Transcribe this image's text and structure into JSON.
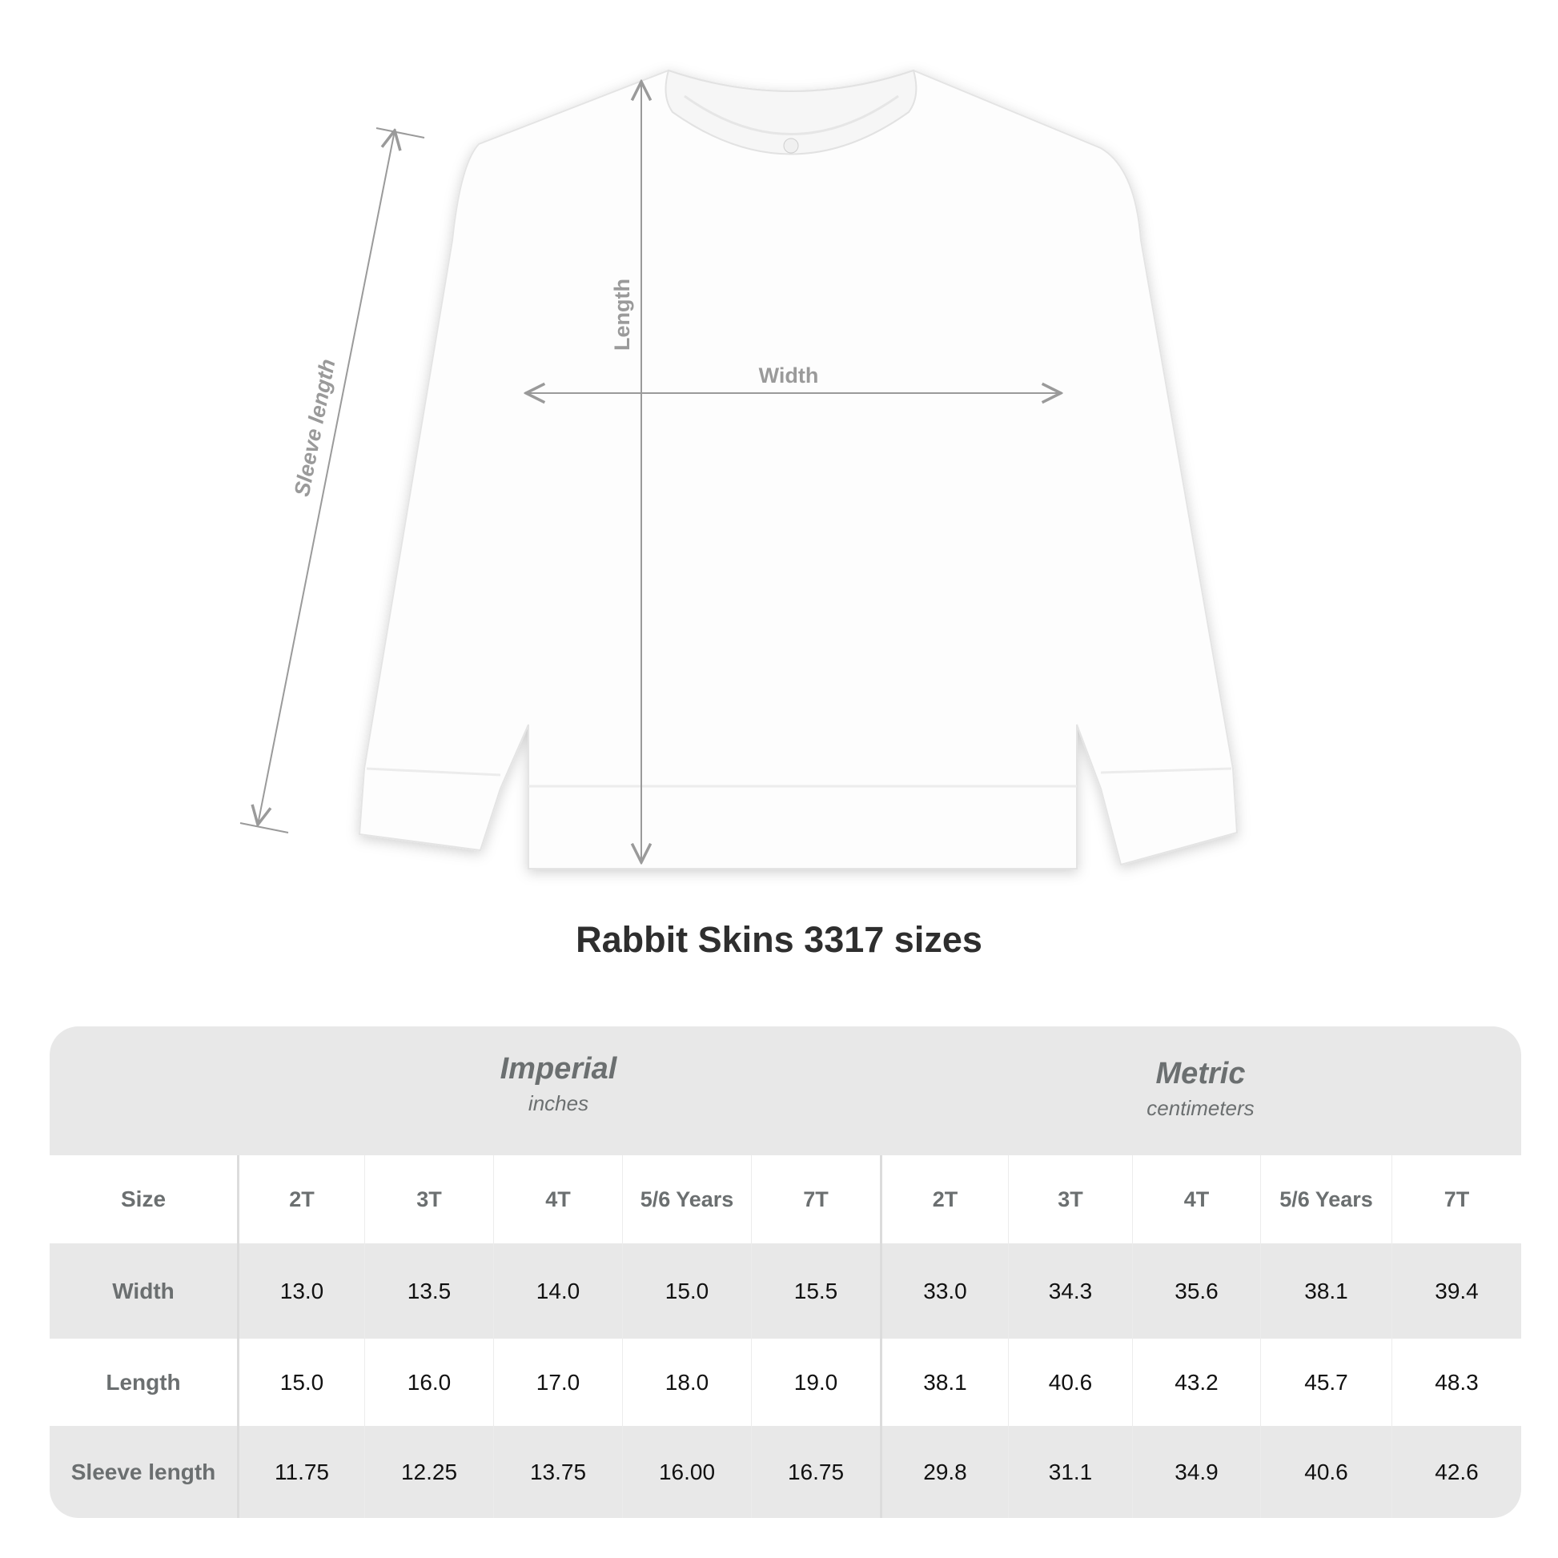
{
  "diagram": {
    "labels": {
      "width": "Width",
      "length": "Length",
      "sleeve": "Sleeve length"
    }
  },
  "title": "Rabbit Skins 3317 sizes",
  "table": {
    "groups": [
      {
        "title": "Imperial",
        "unit": "inches"
      },
      {
        "title": "Metric",
        "unit": "centimeters"
      }
    ],
    "size_label": "Size",
    "sizes": [
      "2T",
      "3T",
      "4T",
      "5/6 Years",
      "7T",
      "2T",
      "3T",
      "4T",
      "5/6 Years",
      "7T"
    ],
    "rows": [
      {
        "label": "Width",
        "values": [
          "13.0",
          "13.5",
          "14.0",
          "15.0",
          "15.5",
          "33.0",
          "34.3",
          "35.6",
          "38.1",
          "39.4"
        ]
      },
      {
        "label": "Length",
        "values": [
          "15.0",
          "16.0",
          "17.0",
          "18.0",
          "19.0",
          "38.1",
          "40.6",
          "43.2",
          "45.7",
          "48.3"
        ]
      },
      {
        "label": "Sleeve length",
        "values": [
          "11.75",
          "12.25",
          "13.75",
          "16.00",
          "16.75",
          "29.8",
          "31.1",
          "34.9",
          "40.6",
          "42.6"
        ]
      }
    ]
  },
  "colors": {
    "label_gray": "#6b6f70",
    "band_gray": "#e8e8e8",
    "arrow_gray": "#9a9a9a"
  }
}
